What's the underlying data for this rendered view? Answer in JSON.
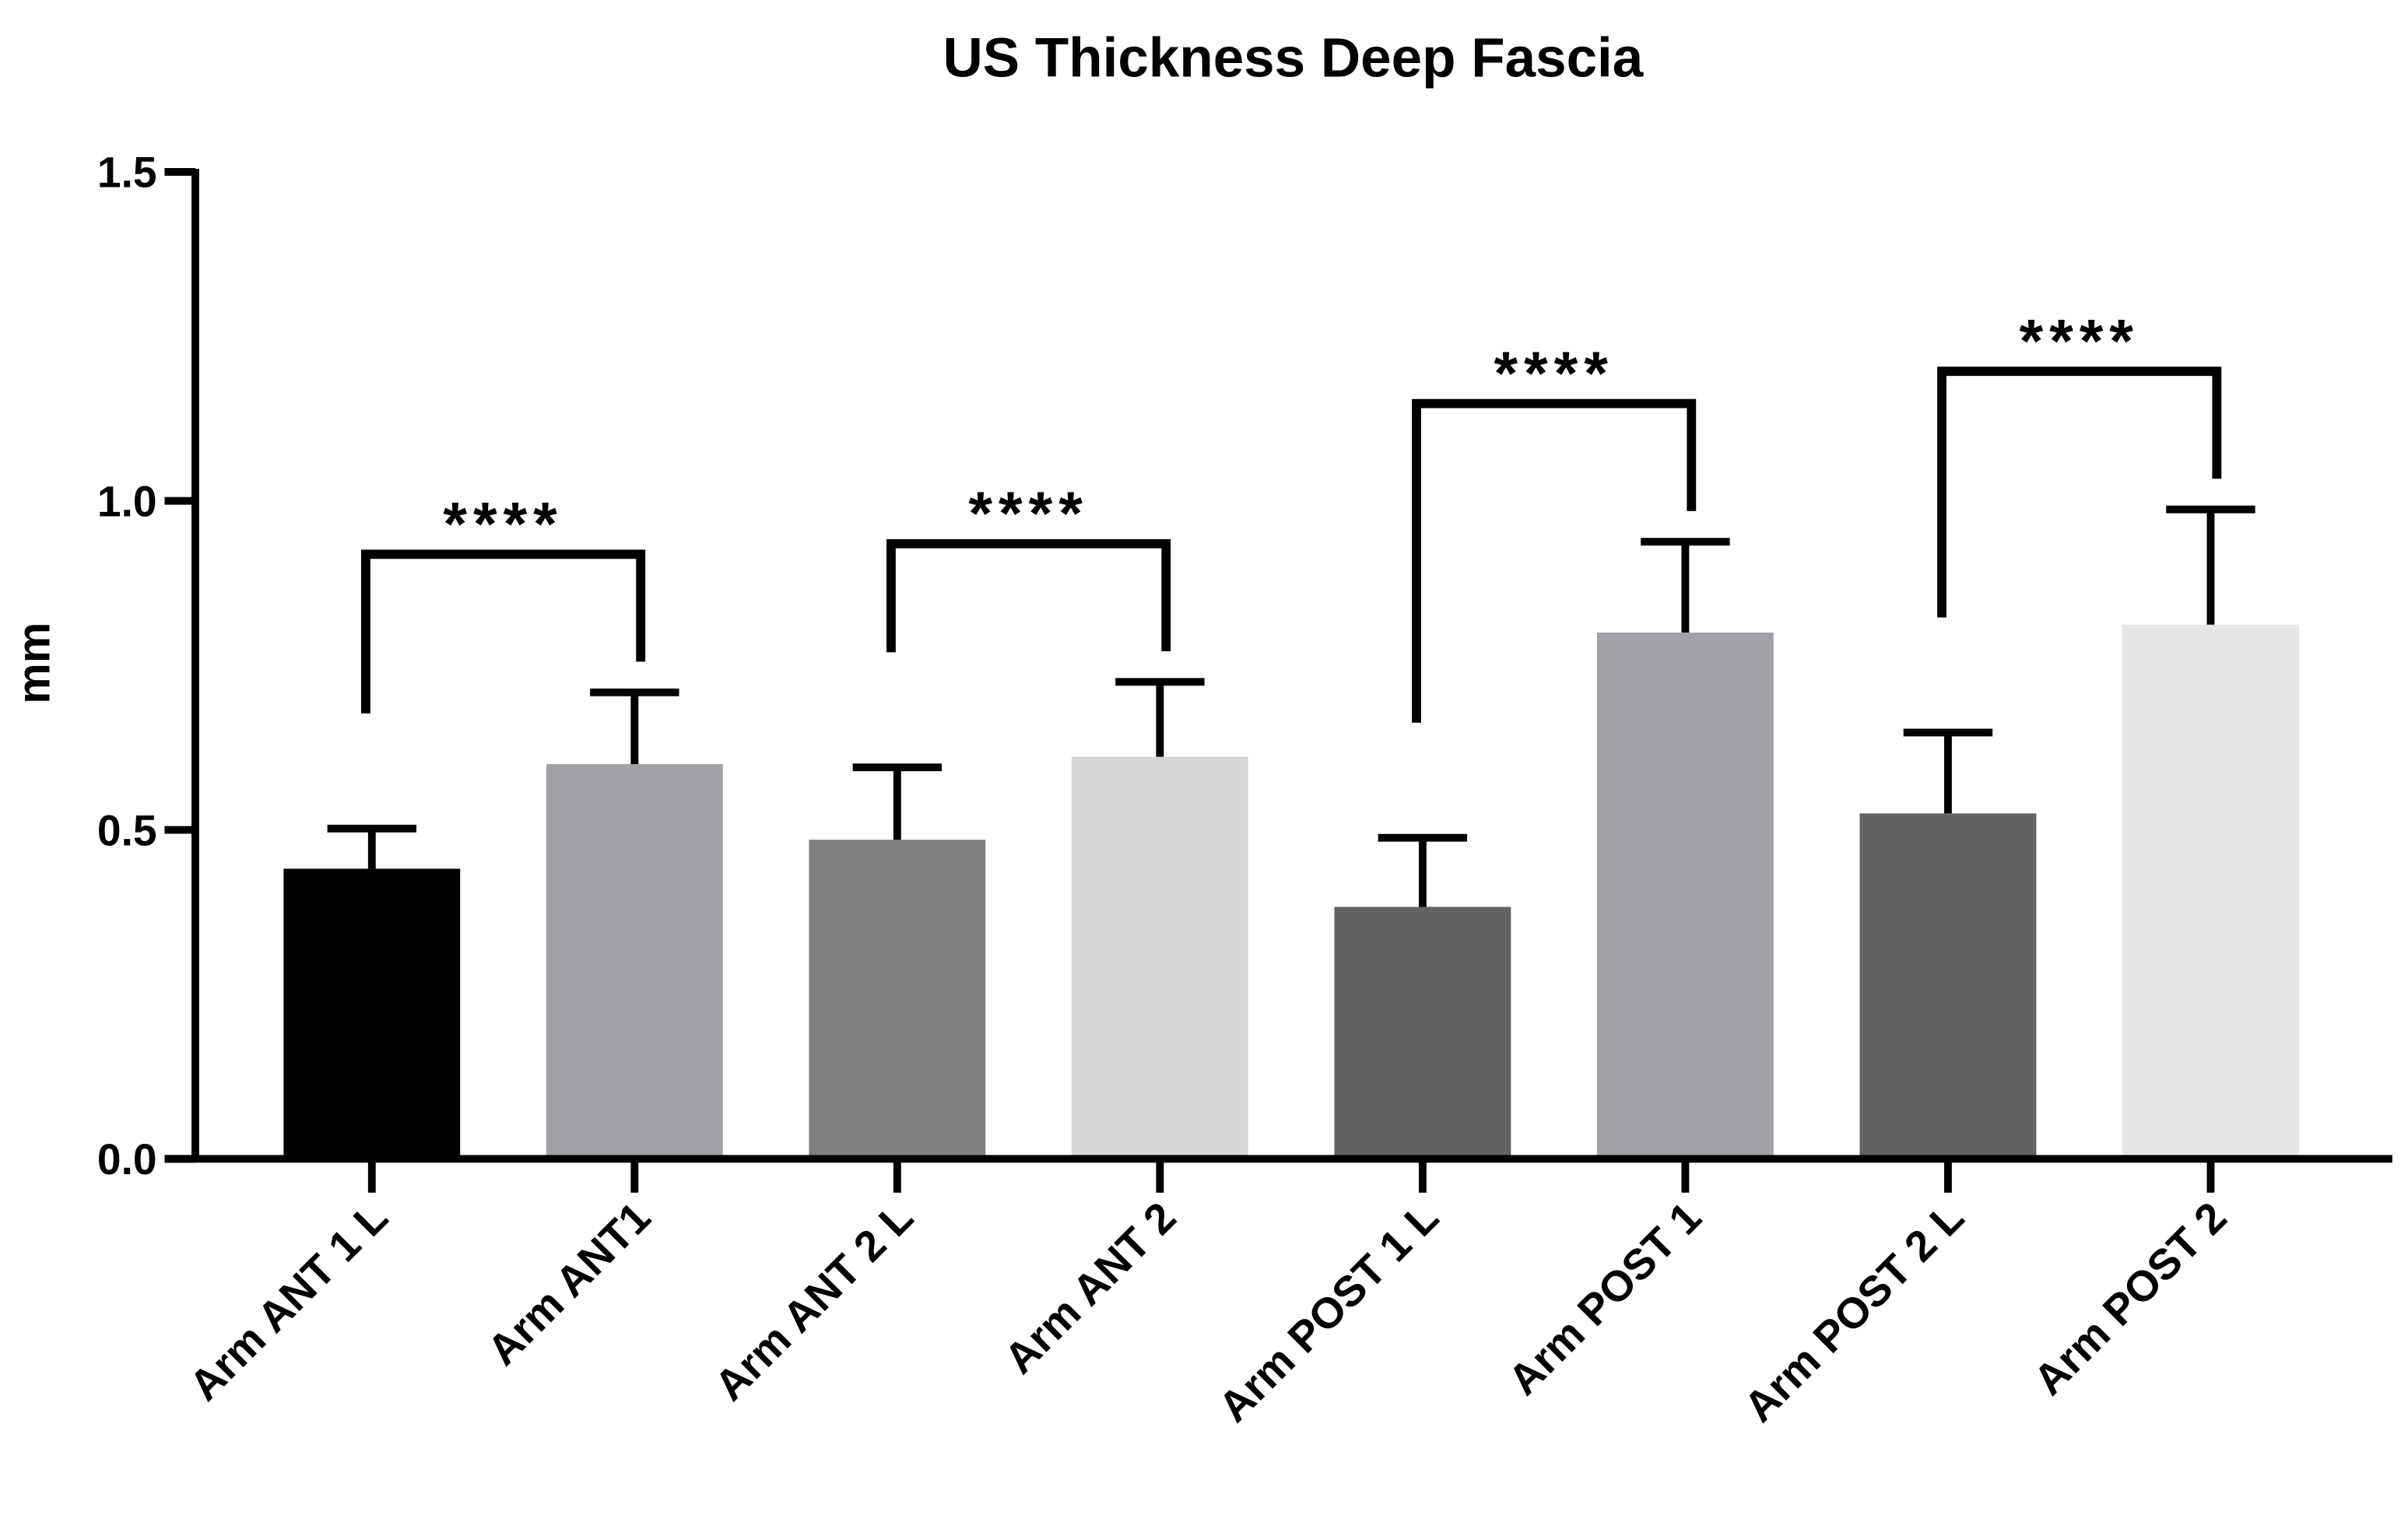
{
  "chart_data": {
    "type": "bar",
    "title": "US Thickness Deep Fascia",
    "y_label": "mm",
    "categories": [
      "Arm ANT 1 L",
      "Arm ANT1",
      "Arm ANT 2 L",
      "Arm ANT 2",
      "Arm POST 1 L",
      "Arm POST 1",
      "Arm POST 2 L",
      "Arm POST 2"
    ],
    "values": [
      0.441,
      0.6,
      0.485,
      0.611,
      0.383,
      0.8,
      0.525,
      0.812
    ],
    "errors": [
      0.061,
      0.109,
      0.11,
      0.114,
      0.105,
      0.138,
      0.123,
      0.175
    ],
    "colors": [
      "#000000",
      "#a2a1a6",
      "#808080",
      "#d6d6d6",
      "#636363",
      "#a2a1a6",
      "#636363",
      "#e6e6e6"
    ],
    "ylim": [
      0,
      1.5
    ],
    "yticks": [
      {
        "value": 0,
        "label": "0.0"
      },
      0.5,
      {
        "value": 1,
        "label": "1.0"
      },
      {
        "value": 1.5,
        "label": "1.5"
      }
    ],
    "comparisons": [
      {
        "pair": [
          0,
          1
        ],
        "label": "****"
      },
      {
        "pair": [
          2,
          3
        ],
        "label": "****"
      },
      {
        "pair": [
          4,
          5
        ],
        "label": "****"
      },
      {
        "pair": [
          6,
          7
        ],
        "label": "****"
      }
    ]
  }
}
